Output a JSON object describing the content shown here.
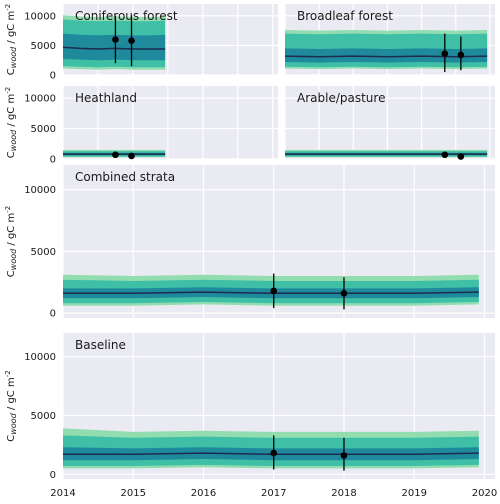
{
  "colors": {
    "panel_bg": "#eaeaf2",
    "grid": "#ffffff",
    "band_outer": "#92ddb0",
    "band_mid": "#3fbfa6",
    "band_inner": "#1f8a9c",
    "median": "#1d2b4f",
    "obs": "#000000"
  },
  "chart_data": [
    {
      "type": "area",
      "title": "Coniferous forest",
      "ylabel": "C_wood / gC m^-2",
      "ylim": [
        0,
        12000
      ],
      "yticks": [
        0,
        5000,
        10000
      ],
      "xlim": [
        2014.0,
        2020.15
      ],
      "series": {
        "x": [
          2014.0,
          2014.5,
          2015.0,
          2015.5,
          2016.0,
          2016.5,
          2016.92
        ],
        "median": [
          4700,
          4500,
          4400,
          4500,
          4400,
          4400,
          4400
        ],
        "p25": [
          2700,
          2600,
          2500,
          2600,
          2500,
          2500,
          2500
        ],
        "p75": [
          7000,
          6800,
          6700,
          6800,
          6700,
          6700,
          6800
        ],
        "p5": [
          1500,
          1400,
          1300,
          1400,
          1300,
          1300,
          1300
        ],
        "p95": [
          9400,
          9200,
          9100,
          9200,
          9100,
          9100,
          9200
        ],
        "min": [
          1100,
          1000,
          900,
          1000,
          900,
          900,
          900
        ],
        "max": [
          10100,
          9900,
          9800,
          9900,
          9800,
          9800,
          9900
        ]
      },
      "observations": [
        {
          "x": 2015.5,
          "y": 6000,
          "lo": 2000,
          "hi": 10000
        },
        {
          "x": 2015.96,
          "y": 5800,
          "lo": 1500,
          "hi": 10100
        }
      ]
    },
    {
      "type": "area",
      "title": "Broadleaf forest",
      "ylabel": "",
      "ylim": [
        0,
        12000
      ],
      "yticks": [
        0,
        5000,
        10000
      ],
      "xlim": [
        2014.0,
        2020.15
      ],
      "series": {
        "x": [
          2014.0,
          2015.0,
          2016.0,
          2017.0,
          2018.0,
          2019.0,
          2019.92
        ],
        "median": [
          3200,
          3100,
          3200,
          3100,
          3200,
          3100,
          3200
        ],
        "p25": [
          2200,
          2100,
          2200,
          2100,
          2200,
          2100,
          2200
        ],
        "p75": [
          4500,
          4400,
          4500,
          4400,
          4500,
          4400,
          4500
        ],
        "p5": [
          1400,
          1300,
          1400,
          1300,
          1400,
          1300,
          1400
        ],
        "p95": [
          7000,
          6900,
          7000,
          6900,
          7000,
          6900,
          7000
        ],
        "min": [
          1100,
          1000,
          1100,
          1000,
          1100,
          1000,
          1100
        ],
        "max": [
          7600,
          7500,
          7600,
          7500,
          7600,
          7500,
          7600
        ]
      },
      "observations": [
        {
          "x": 2018.68,
          "y": 3600,
          "lo": 500,
          "hi": 7000
        },
        {
          "x": 2019.15,
          "y": 3400,
          "lo": 800,
          "hi": 6500
        }
      ]
    },
    {
      "type": "area",
      "title": "Heathland",
      "ylabel": "C_wood / gC m^-2",
      "ylim": [
        0,
        12000
      ],
      "yticks": [
        0,
        5000,
        10000
      ],
      "xlim": [
        2014.0,
        2020.15
      ],
      "series": {
        "x": [
          2014.0,
          2014.5,
          2015.0,
          2015.5,
          2016.0,
          2016.5,
          2016.92
        ],
        "median": [
          800,
          800,
          800,
          800,
          800,
          800,
          800
        ],
        "p25": [
          600,
          600,
          600,
          600,
          600,
          600,
          600
        ],
        "p75": [
          1000,
          1000,
          1000,
          1000,
          1000,
          1000,
          1000
        ],
        "p5": [
          400,
          400,
          400,
          400,
          400,
          400,
          400
        ],
        "p95": [
          1300,
          1300,
          1300,
          1300,
          1300,
          1300,
          1300
        ],
        "min": [
          300,
          300,
          300,
          300,
          300,
          300,
          300
        ],
        "max": [
          1500,
          1500,
          1500,
          1500,
          1500,
          1500,
          1500
        ]
      },
      "observations": [
        {
          "x": 2015.5,
          "y": 700,
          "lo": 300,
          "hi": 1100
        },
        {
          "x": 2015.96,
          "y": 500,
          "lo": 300,
          "hi": 700
        }
      ]
    },
    {
      "type": "area",
      "title": "Arable/pasture",
      "ylabel": "",
      "ylim": [
        0,
        12000
      ],
      "yticks": [
        0,
        5000,
        10000
      ],
      "xlim": [
        2014.0,
        2020.15
      ],
      "series": {
        "x": [
          2014.0,
          2015.0,
          2016.0,
          2017.0,
          2018.0,
          2019.0,
          2019.92
        ],
        "median": [
          800,
          800,
          800,
          800,
          800,
          800,
          800
        ],
        "p25": [
          600,
          600,
          600,
          600,
          600,
          600,
          600
        ],
        "p75": [
          1000,
          1000,
          1000,
          1000,
          1000,
          1000,
          1000
        ],
        "p5": [
          400,
          400,
          400,
          400,
          400,
          400,
          400
        ],
        "p95": [
          1300,
          1300,
          1300,
          1300,
          1300,
          1300,
          1300
        ],
        "min": [
          300,
          300,
          300,
          300,
          300,
          300,
          300
        ],
        "max": [
          1500,
          1500,
          1500,
          1500,
          1500,
          1500,
          1500
        ]
      },
      "observations": [
        {
          "x": 2018.68,
          "y": 700,
          "lo": 300,
          "hi": 1100
        },
        {
          "x": 2019.15,
          "y": 400,
          "lo": 200,
          "hi": 600
        }
      ]
    },
    {
      "type": "area",
      "title": "Combined strata",
      "ylabel": "C_wood / gC m^-2",
      "ylim": [
        -400,
        12000
      ],
      "yticks": [
        0,
        5000,
        10000
      ],
      "xlim": [
        2014.0,
        2020.15
      ],
      "series": {
        "x": [
          2014.0,
          2015.0,
          2016.0,
          2017.0,
          2018.0,
          2019.0,
          2019.92
        ],
        "median": [
          1600,
          1600,
          1700,
          1600,
          1600,
          1600,
          1700
        ],
        "p25": [
          1200,
          1200,
          1300,
          1200,
          1200,
          1200,
          1300
        ],
        "p75": [
          2000,
          2000,
          2100,
          2000,
          2000,
          2000,
          2100
        ],
        "p5": [
          800,
          800,
          900,
          800,
          800,
          800,
          900
        ],
        "p95": [
          2700,
          2600,
          2700,
          2600,
          2600,
          2600,
          2700
        ],
        "min": [
          600,
          600,
          700,
          600,
          600,
          600,
          700
        ],
        "max": [
          3100,
          3000,
          3100,
          3000,
          3000,
          3000,
          3100
        ]
      },
      "observations": [
        {
          "x": 2017.0,
          "y": 1800,
          "lo": 400,
          "hi": 3200
        },
        {
          "x": 2018.0,
          "y": 1600,
          "lo": 300,
          "hi": 2900
        }
      ]
    },
    {
      "type": "area",
      "title": "Baseline",
      "ylabel": "C_wood / gC m^-2",
      "ylim": [
        -400,
        12000
      ],
      "yticks": [
        0,
        5000,
        10000
      ],
      "xlim": [
        2014.0,
        2020.15
      ],
      "xticks": [
        2014,
        2015,
        2016,
        2017,
        2018,
        2019,
        2020
      ],
      "series": {
        "x": [
          2014.0,
          2015.0,
          2016.0,
          2017.0,
          2018.0,
          2019.0,
          2019.92
        ],
        "median": [
          1700,
          1700,
          1800,
          1700,
          1700,
          1700,
          1800
        ],
        "p25": [
          1200,
          1200,
          1300,
          1200,
          1200,
          1200,
          1300
        ],
        "p75": [
          2300,
          2200,
          2300,
          2200,
          2200,
          2200,
          2300
        ],
        "p5": [
          700,
          700,
          800,
          700,
          700,
          700,
          800
        ],
        "p95": [
          3300,
          3100,
          3200,
          3100,
          3100,
          3100,
          3200
        ],
        "min": [
          500,
          500,
          600,
          500,
          500,
          500,
          600
        ],
        "max": [
          3900,
          3600,
          3700,
          3600,
          3600,
          3600,
          3700
        ]
      },
      "observations": [
        {
          "x": 2017.0,
          "y": 1800,
          "lo": 400,
          "hi": 3300
        },
        {
          "x": 2018.0,
          "y": 1600,
          "lo": 300,
          "hi": 3100
        }
      ]
    }
  ]
}
